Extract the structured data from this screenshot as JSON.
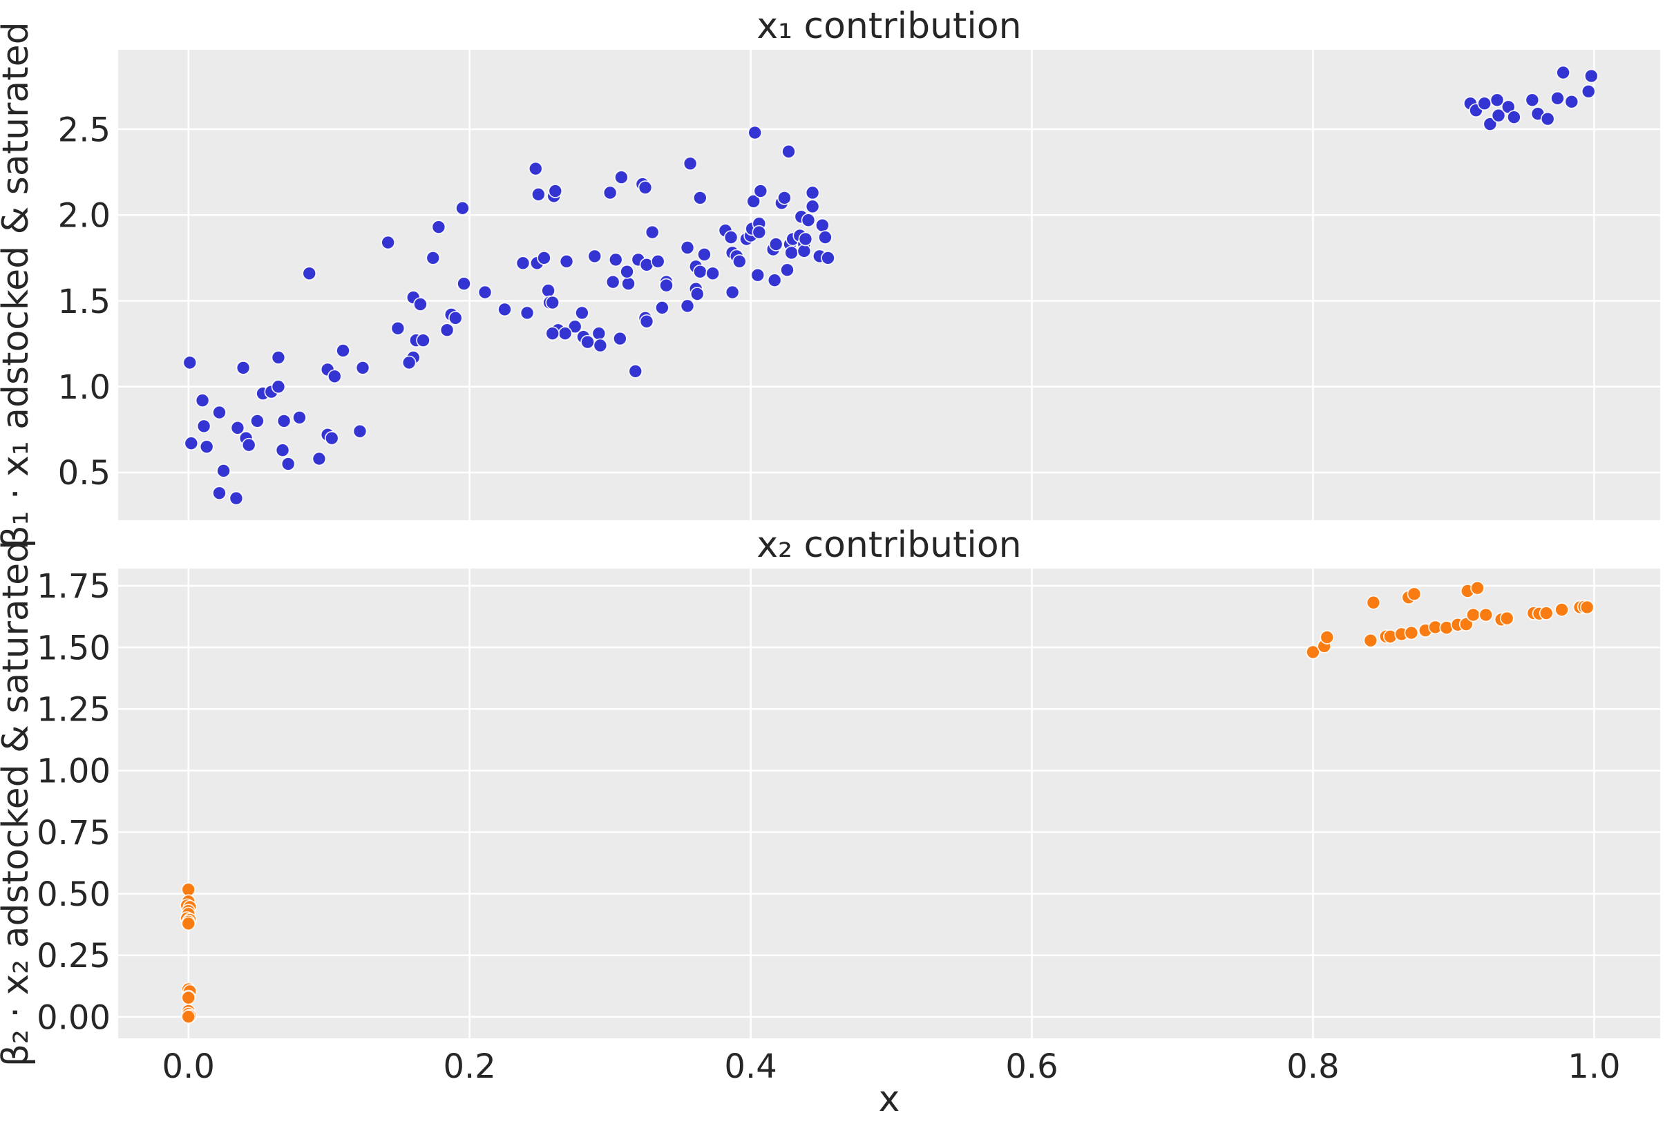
{
  "figure": {
    "background_color": "#ffffff",
    "panel_background_color": "#ebebeb",
    "grid_color": "#ffffff",
    "text_color": "#262626"
  },
  "chart_data": {
    "type": "scatter",
    "xlabel": "x",
    "xlim": [
      -0.05,
      1.047
    ],
    "grid": true,
    "legend": "none",
    "x_ticks": {
      "values": [
        0.0,
        0.2,
        0.4,
        0.6,
        0.8,
        1.0
      ],
      "labels": [
        "0.0",
        "0.2",
        "0.4",
        "0.6",
        "0.8",
        "1.0"
      ]
    },
    "panels": [
      {
        "id": "x1",
        "title": "x₁ contribution",
        "ylabel": "β₁ · x₁ adstocked & saturated",
        "point_color": "#3434d2",
        "ylim": [
          0.222,
          2.963
        ],
        "y_ticks": {
          "values": [
            0.5,
            1.0,
            1.5,
            2.0,
            2.5
          ],
          "labels": [
            "0.5",
            "1.0",
            "1.5",
            "2.0",
            "2.5"
          ]
        },
        "points": [
          [
            0.001,
            1.14
          ],
          [
            0.01,
            0.92
          ],
          [
            0.022,
            0.85
          ],
          [
            0.011,
            0.77
          ],
          [
            0.002,
            0.67
          ],
          [
            0.013,
            0.65
          ],
          [
            0.025,
            0.51
          ],
          [
            0.022,
            0.38
          ],
          [
            0.034,
            0.35
          ],
          [
            0.039,
            1.11
          ],
          [
            0.035,
            0.76
          ],
          [
            0.041,
            0.7
          ],
          [
            0.043,
            0.66
          ],
          [
            0.049,
            0.8
          ],
          [
            0.053,
            0.96
          ],
          [
            0.059,
            0.97
          ],
          [
            0.064,
            1.0
          ],
          [
            0.064,
            1.17
          ],
          [
            0.067,
            0.63
          ],
          [
            0.071,
            0.55
          ],
          [
            0.068,
            0.8
          ],
          [
            0.079,
            0.82
          ],
          [
            0.086,
            1.66
          ],
          [
            0.093,
            0.58
          ],
          [
            0.099,
            1.1
          ],
          [
            0.104,
            1.06
          ],
          [
            0.099,
            0.72
          ],
          [
            0.102,
            0.7
          ],
          [
            0.11,
            1.21
          ],
          [
            0.122,
            0.74
          ],
          [
            0.124,
            1.11
          ],
          [
            0.149,
            1.34
          ],
          [
            0.16,
            1.52
          ],
          [
            0.165,
            1.48
          ],
          [
            0.16,
            1.17
          ],
          [
            0.157,
            1.14
          ],
          [
            0.162,
            1.27
          ],
          [
            0.167,
            1.27
          ],
          [
            0.184,
            1.33
          ],
          [
            0.187,
            1.42
          ],
          [
            0.19,
            1.4
          ],
          [
            0.196,
            1.6
          ],
          [
            0.211,
            1.55
          ],
          [
            0.225,
            1.45
          ],
          [
            0.241,
            1.43
          ],
          [
            0.238,
            1.72
          ],
          [
            0.248,
            1.72
          ],
          [
            0.253,
            1.75
          ],
          [
            0.256,
            1.56
          ],
          [
            0.257,
            1.49
          ],
          [
            0.263,
            1.33
          ],
          [
            0.142,
            1.84
          ],
          [
            0.174,
            1.75
          ],
          [
            0.178,
            1.93
          ],
          [
            0.195,
            2.04
          ],
          [
            0.247,
            2.27
          ],
          [
            0.249,
            2.12
          ],
          [
            0.26,
            2.11
          ],
          [
            0.259,
            1.49
          ],
          [
            0.261,
            2.14
          ],
          [
            0.269,
            1.73
          ],
          [
            0.275,
            1.35
          ],
          [
            0.268,
            1.31
          ],
          [
            0.259,
            1.31
          ],
          [
            0.281,
            1.29
          ],
          [
            0.284,
            1.26
          ],
          [
            0.292,
            1.31
          ],
          [
            0.293,
            1.24
          ],
          [
            0.28,
            1.43
          ],
          [
            0.289,
            1.76
          ],
          [
            0.3,
            2.13
          ],
          [
            0.304,
            1.74
          ],
          [
            0.302,
            1.61
          ],
          [
            0.307,
            1.28
          ],
          [
            0.308,
            2.22
          ],
          [
            0.313,
            1.6
          ],
          [
            0.312,
            1.67
          ],
          [
            0.318,
            1.09
          ],
          [
            0.32,
            1.74
          ],
          [
            0.323,
            2.18
          ],
          [
            0.325,
            2.16
          ],
          [
            0.325,
            1.4
          ],
          [
            0.326,
            1.71
          ],
          [
            0.326,
            1.38
          ],
          [
            0.33,
            1.9
          ],
          [
            0.334,
            1.73
          ],
          [
            0.337,
            1.46
          ],
          [
            0.34,
            1.61
          ],
          [
            0.34,
            1.59
          ],
          [
            0.355,
            1.81
          ],
          [
            0.355,
            1.47
          ],
          [
            0.357,
            2.3
          ],
          [
            0.361,
            1.7
          ],
          [
            0.361,
            1.57
          ],
          [
            0.362,
            1.54
          ],
          [
            0.364,
            1.67
          ],
          [
            0.364,
            2.1
          ],
          [
            0.367,
            1.77
          ],
          [
            0.373,
            1.66
          ],
          [
            0.382,
            1.91
          ],
          [
            0.386,
            1.87
          ],
          [
            0.387,
            1.78
          ],
          [
            0.387,
            1.55
          ],
          [
            0.39,
            1.76
          ],
          [
            0.392,
            1.73
          ],
          [
            0.397,
            1.86
          ],
          [
            0.4,
            1.88
          ],
          [
            0.401,
            1.92
          ],
          [
            0.402,
            2.08
          ],
          [
            0.403,
            2.48
          ],
          [
            0.405,
            1.65
          ],
          [
            0.406,
            1.95
          ],
          [
            0.406,
            1.9
          ],
          [
            0.407,
            2.14
          ],
          [
            0.416,
            1.8
          ],
          [
            0.417,
            1.62
          ],
          [
            0.418,
            1.83
          ],
          [
            0.422,
            2.07
          ],
          [
            0.424,
            2.1
          ],
          [
            0.426,
            1.68
          ],
          [
            0.427,
            2.37
          ],
          [
            0.428,
            1.83
          ],
          [
            0.429,
            1.78
          ],
          [
            0.43,
            1.86
          ],
          [
            0.435,
            1.88
          ],
          [
            0.436,
            1.99
          ],
          [
            0.438,
            1.83
          ],
          [
            0.438,
            1.79
          ],
          [
            0.439,
            1.86
          ],
          [
            0.441,
            1.97
          ],
          [
            0.444,
            2.13
          ],
          [
            0.444,
            2.05
          ],
          [
            0.449,
            1.76
          ],
          [
            0.451,
            1.94
          ],
          [
            0.453,
            1.87
          ],
          [
            0.455,
            1.75
          ],
          [
            0.912,
            2.65
          ],
          [
            0.916,
            2.61
          ],
          [
            0.922,
            2.65
          ],
          [
            0.926,
            2.53
          ],
          [
            0.931,
            2.67
          ],
          [
            0.932,
            2.58
          ],
          [
            0.939,
            2.63
          ],
          [
            0.943,
            2.57
          ],
          [
            0.956,
            2.67
          ],
          [
            0.96,
            2.59
          ],
          [
            0.967,
            2.56
          ],
          [
            0.974,
            2.68
          ],
          [
            0.978,
            2.83
          ],
          [
            0.984,
            2.66
          ],
          [
            0.996,
            2.72
          ],
          [
            0.998,
            2.81
          ]
        ]
      },
      {
        "id": "x2",
        "title": "x₂ contribution",
        "ylabel": "β₂ · x₂ adstocked & saturated",
        "point_color": "#f97c12",
        "ylim": [
          -0.087,
          1.82
        ],
        "y_ticks": {
          "values": [
            0.0,
            0.25,
            0.5,
            0.75,
            1.0,
            1.25,
            1.5,
            1.75
          ],
          "labels": [
            "0.00",
            "0.25",
            "0.50",
            "0.75",
            "1.00",
            "1.25",
            "1.50",
            "1.75"
          ]
        },
        "points": [
          [
            0.0,
            0.517
          ],
          [
            0.0,
            0.469
          ],
          [
            -0.001,
            0.452
          ],
          [
            0.001,
            0.446
          ],
          [
            0.0,
            0.43
          ],
          [
            0.0,
            0.418
          ],
          [
            -0.001,
            0.4
          ],
          [
            0.001,
            0.394
          ],
          [
            0.0,
            0.386
          ],
          [
            0.0,
            0.379
          ],
          [
            0.0,
            0.112
          ],
          [
            0.001,
            0.104
          ],
          [
            0.0,
            0.081
          ],
          [
            0.0,
            0.078
          ],
          [
            0.0,
            0.024
          ],
          [
            0.0,
            0.012
          ],
          [
            0.001,
            0.004
          ],
          [
            0.0,
            0.001
          ],
          [
            0.8,
            1.481
          ],
          [
            0.808,
            1.505
          ],
          [
            0.81,
            1.541
          ],
          [
            0.841,
            1.528
          ],
          [
            0.843,
            1.682
          ],
          [
            0.852,
            1.544
          ],
          [
            0.855,
            1.544
          ],
          [
            0.863,
            1.554
          ],
          [
            0.868,
            1.703
          ],
          [
            0.87,
            1.559
          ],
          [
            0.872,
            1.717
          ],
          [
            0.88,
            1.569
          ],
          [
            0.887,
            1.582
          ],
          [
            0.895,
            1.58
          ],
          [
            0.903,
            1.592
          ],
          [
            0.909,
            1.594
          ],
          [
            0.91,
            1.729
          ],
          [
            0.914,
            1.632
          ],
          [
            0.917,
            1.741
          ],
          [
            0.923,
            1.632
          ],
          [
            0.934,
            1.613
          ],
          [
            0.938,
            1.618
          ],
          [
            0.957,
            1.639
          ],
          [
            0.961,
            1.637
          ],
          [
            0.966,
            1.639
          ],
          [
            0.977,
            1.653
          ],
          [
            0.99,
            1.663
          ],
          [
            0.993,
            1.665
          ],
          [
            0.995,
            1.663
          ]
        ]
      }
    ]
  }
}
